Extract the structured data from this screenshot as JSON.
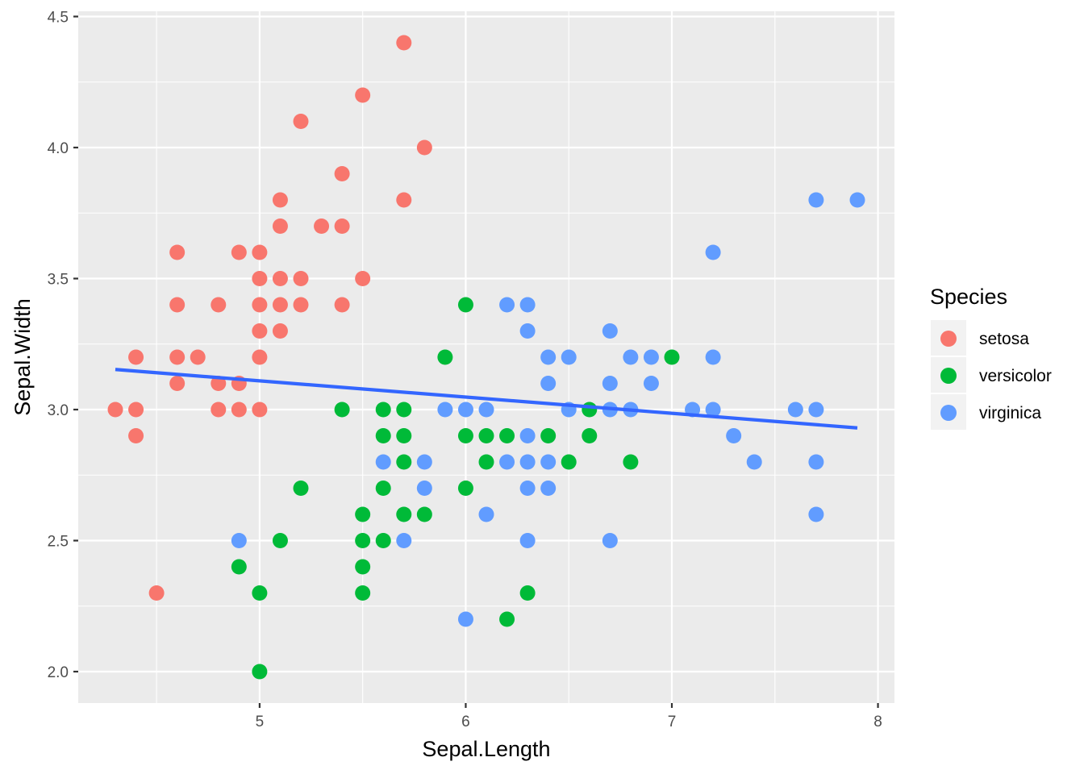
{
  "chart_data": {
    "type": "scatter",
    "xlabel": "Sepal.Length",
    "ylabel": "Sepal.Width",
    "xlim": [
      4.12,
      8.08
    ],
    "ylim": [
      1.88,
      4.52
    ],
    "x_ticks": [
      5,
      6,
      7,
      8
    ],
    "y_ticks": [
      2.0,
      2.5,
      3.0,
      3.5,
      4.0,
      4.5
    ],
    "x_tick_labels": [
      "5",
      "6",
      "7",
      "8"
    ],
    "y_tick_labels": [
      "2.0",
      "2.5",
      "3.0",
      "3.5",
      "4.0",
      "4.5"
    ],
    "grid": true,
    "background": "#EBEBEB",
    "legend": {
      "title": "Species",
      "position": "right"
    },
    "trend_line": {
      "x": [
        4.3,
        7.9
      ],
      "y": [
        3.153,
        2.93
      ],
      "color": "#3366FF"
    },
    "series": [
      {
        "name": "setosa",
        "color": "#F8766D",
        "points": [
          [
            5.7,
            4.4
          ],
          [
            5.5,
            4.2
          ],
          [
            5.2,
            4.1
          ],
          [
            5.8,
            4.0
          ],
          [
            5.4,
            3.9
          ],
          [
            5.1,
            3.8
          ],
          [
            5.7,
            3.8
          ],
          [
            5.1,
            3.7
          ],
          [
            5.3,
            3.7
          ],
          [
            5.4,
            3.7
          ],
          [
            4.6,
            3.6
          ],
          [
            4.9,
            3.6
          ],
          [
            5.0,
            3.6
          ],
          [
            5.0,
            3.5
          ],
          [
            5.1,
            3.5
          ],
          [
            5.2,
            3.5
          ],
          [
            5.5,
            3.5
          ],
          [
            4.6,
            3.4
          ],
          [
            4.8,
            3.4
          ],
          [
            5.0,
            3.4
          ],
          [
            5.1,
            3.4
          ],
          [
            5.2,
            3.4
          ],
          [
            5.4,
            3.4
          ],
          [
            5.0,
            3.3
          ],
          [
            5.1,
            3.3
          ],
          [
            4.4,
            3.2
          ],
          [
            4.6,
            3.2
          ],
          [
            4.7,
            3.2
          ],
          [
            5.0,
            3.2
          ],
          [
            4.6,
            3.1
          ],
          [
            4.8,
            3.1
          ],
          [
            4.9,
            3.1
          ],
          [
            4.3,
            3.0
          ],
          [
            4.4,
            3.0
          ],
          [
            4.8,
            3.0
          ],
          [
            4.9,
            3.0
          ],
          [
            5.0,
            3.0
          ],
          [
            4.4,
            2.9
          ],
          [
            4.5,
            2.3
          ]
        ]
      },
      {
        "name": "versicolor",
        "color": "#00BA38",
        "points": [
          [
            6.0,
            3.4
          ],
          [
            5.9,
            3.2
          ],
          [
            7.0,
            3.2
          ],
          [
            5.4,
            3.0
          ],
          [
            5.6,
            3.0
          ],
          [
            5.7,
            3.0
          ],
          [
            6.6,
            3.0
          ],
          [
            5.6,
            2.9
          ],
          [
            5.7,
            2.9
          ],
          [
            6.0,
            2.9
          ],
          [
            6.1,
            2.9
          ],
          [
            6.2,
            2.9
          ],
          [
            6.4,
            2.9
          ],
          [
            6.6,
            2.9
          ],
          [
            5.7,
            2.8
          ],
          [
            6.1,
            2.8
          ],
          [
            6.5,
            2.8
          ],
          [
            6.8,
            2.8
          ],
          [
            5.2,
            2.7
          ],
          [
            5.6,
            2.7
          ],
          [
            6.0,
            2.7
          ],
          [
            5.5,
            2.6
          ],
          [
            5.7,
            2.6
          ],
          [
            5.8,
            2.6
          ],
          [
            5.1,
            2.5
          ],
          [
            5.5,
            2.5
          ],
          [
            5.6,
            2.5
          ],
          [
            4.9,
            2.4
          ],
          [
            5.5,
            2.4
          ],
          [
            5.0,
            2.3
          ],
          [
            5.5,
            2.3
          ],
          [
            6.3,
            2.3
          ],
          [
            6.2,
            2.2
          ],
          [
            5.0,
            2.0
          ]
        ]
      },
      {
        "name": "virginica",
        "color": "#619CFF",
        "points": [
          [
            7.7,
            3.8
          ],
          [
            7.9,
            3.8
          ],
          [
            7.2,
            3.6
          ],
          [
            6.2,
            3.4
          ],
          [
            6.3,
            3.4
          ],
          [
            6.3,
            3.3
          ],
          [
            6.7,
            3.3
          ],
          [
            6.4,
            3.2
          ],
          [
            6.5,
            3.2
          ],
          [
            6.8,
            3.2
          ],
          [
            6.9,
            3.2
          ],
          [
            7.2,
            3.2
          ],
          [
            6.4,
            3.1
          ],
          [
            6.7,
            3.1
          ],
          [
            6.9,
            3.1
          ],
          [
            5.9,
            3.0
          ],
          [
            6.0,
            3.0
          ],
          [
            6.1,
            3.0
          ],
          [
            6.5,
            3.0
          ],
          [
            6.7,
            3.0
          ],
          [
            6.8,
            3.0
          ],
          [
            7.1,
            3.0
          ],
          [
            7.2,
            3.0
          ],
          [
            7.6,
            3.0
          ],
          [
            7.7,
            3.0
          ],
          [
            6.3,
            2.9
          ],
          [
            7.3,
            2.9
          ],
          [
            5.6,
            2.8
          ],
          [
            5.8,
            2.8
          ],
          [
            6.2,
            2.8
          ],
          [
            6.3,
            2.8
          ],
          [
            6.4,
            2.8
          ],
          [
            7.4,
            2.8
          ],
          [
            7.7,
            2.8
          ],
          [
            5.8,
            2.7
          ],
          [
            6.3,
            2.7
          ],
          [
            6.4,
            2.7
          ],
          [
            6.1,
            2.6
          ],
          [
            7.7,
            2.6
          ],
          [
            4.9,
            2.5
          ],
          [
            5.7,
            2.5
          ],
          [
            6.3,
            2.5
          ],
          [
            6.7,
            2.5
          ],
          [
            6.0,
            2.2
          ]
        ]
      }
    ]
  }
}
